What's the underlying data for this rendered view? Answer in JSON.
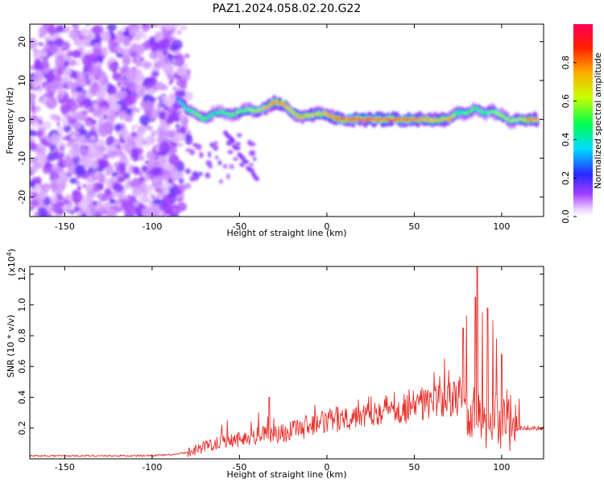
{
  "figure": {
    "title": "PAZ1.2024.058.02.20.G22"
  },
  "chart_data": [
    {
      "type": "heatmap",
      "xlabel": "Height of straight line (km)",
      "ylabel": "Frequency (Hz)",
      "xlim": [
        -170,
        124
      ],
      "ylim": [
        -25,
        24.5
      ],
      "xticks": [
        "-150",
        "-100",
        "-50",
        "0",
        "50",
        "100"
      ],
      "xtick_values": [
        -150,
        -100,
        -50,
        0,
        50,
        100
      ],
      "yticks": [
        "20",
        "10",
        "0",
        "-10",
        "-20"
      ],
      "ytick_values": [
        20,
        10,
        0,
        -10,
        -20
      ],
      "colorbar": {
        "label": "Normalized spectral amplitude",
        "range": [
          0,
          1
        ],
        "ticks": [
          "0.0",
          "0.2",
          "0.4",
          "0.6",
          "0.8"
        ],
        "tick_values": [
          0,
          0.2,
          0.4,
          0.6,
          0.8
        ],
        "colormap": "gist_rainbow_r"
      },
      "ridge": {
        "x": [
          -85,
          -80,
          -75,
          -70,
          -65,
          -60,
          -55,
          -50,
          -45,
          -40,
          -35,
          -30,
          -25,
          -20,
          -15,
          -10,
          -5,
          0,
          5,
          10,
          20,
          30,
          40,
          50,
          55,
          60,
          65,
          70,
          75,
          80,
          85,
          90,
          95,
          100,
          105,
          110,
          115,
          120
        ],
        "y": [
          5,
          2.5,
          1.5,
          0,
          1.5,
          2,
          1,
          2,
          2.5,
          2,
          3,
          4.5,
          4,
          2,
          0.5,
          1,
          1.5,
          1.5,
          0.2,
          0,
          0,
          0,
          0,
          0,
          0,
          -0.3,
          0,
          0,
          2,
          1.5,
          3,
          1.5,
          2,
          1,
          -0.5,
          0,
          0,
          0
        ],
        "peak_amplitude": [
          0.35,
          0.45,
          0.55,
          0.5,
          0.45,
          0.5,
          0.55,
          0.55,
          0.6,
          0.6,
          0.7,
          0.9,
          0.85,
          0.7,
          0.75,
          0.7,
          0.75,
          0.8,
          0.9,
          1.0,
          1.0,
          1.0,
          1.0,
          0.95,
          0.8,
          0.85,
          0.75,
          0.8,
          0.5,
          0.55,
          0.5,
          0.5,
          0.6,
          0.6,
          0.6,
          0.65,
          0.9,
          0.85
        ]
      },
      "noise_region_x": [
        -170,
        -80
      ],
      "noise_amplitude": 0.2
    },
    {
      "type": "line",
      "xlabel": "Height of straight line (km)",
      "ylabel": "SNR (10 * v/v)",
      "ymultiplier": "(x10",
      "ymultiplier_exp": "4",
      "ymultiplier_close": ")",
      "xlim": [
        -170,
        124
      ],
      "ylim": [
        0,
        1.25
      ],
      "xticks": [
        "-150",
        "-100",
        "-50",
        "0",
        "50",
        "100"
      ],
      "xtick_values": [
        -150,
        -100,
        -50,
        0,
        50,
        100
      ],
      "yticks": [
        "1.2",
        "1.0",
        "0.8",
        "0.6",
        "0.4",
        "0.2"
      ],
      "ytick_values": [
        1.2,
        1.0,
        0.8,
        0.6,
        0.4,
        0.2
      ],
      "color": "#e8302b",
      "envelope": {
        "x": [
          -170,
          -150,
          -130,
          -110,
          -90,
          -80,
          -75,
          -70,
          -65,
          -60,
          -50,
          -40,
          -30,
          -20,
          -10,
          0,
          10,
          20,
          30,
          40,
          50,
          55,
          60,
          65,
          70,
          75,
          78
        ],
        "y": [
          0.02,
          0.02,
          0.02,
          0.02,
          0.025,
          0.04,
          0.06,
          0.08,
          0.1,
          0.12,
          0.13,
          0.15,
          0.16,
          0.18,
          0.21,
          0.24,
          0.27,
          0.3,
          0.32,
          0.33,
          0.34,
          0.36,
          0.37,
          0.38,
          0.38,
          0.39,
          0.4
        ]
      },
      "spikes": {
        "x": [
          -33,
          -39,
          -57,
          -60,
          -12,
          47,
          52,
          78,
          80,
          85,
          86,
          89,
          92,
          95,
          97,
          100,
          103,
          108
        ],
        "y": [
          0.4,
          0.3,
          0.25,
          0.22,
          0.28,
          0.45,
          0.42,
          0.85,
          0.93,
          1.05,
          1.25,
          0.95,
          0.98,
          0.9,
          0.78,
          0.68,
          0.45,
          0.35
        ]
      },
      "tail": {
        "x": [
          110,
          124
        ],
        "y": [
          0.2,
          0.2
        ]
      }
    }
  ]
}
